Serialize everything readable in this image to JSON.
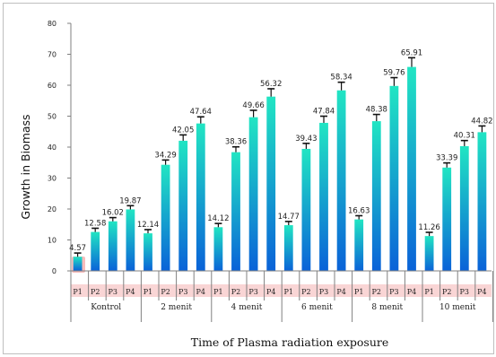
{
  "chart_data": {
    "type": "bar",
    "title": "",
    "xlabel": "Time of Plasma radiation exposure",
    "ylabel": "Growth in Biomass",
    "ylim": [
      0,
      80
    ],
    "yticks": [
      "0",
      "10",
      "20",
      "30",
      "40",
      "50",
      "60",
      "70",
      "80"
    ],
    "grid": false,
    "legend": "none",
    "groups": [
      {
        "name": "Kontrol",
        "categories": [
          "P1",
          "P2",
          "P3",
          "P4"
        ],
        "values": [
          4.57,
          12.58,
          16.02,
          19.87
        ],
        "labels": [
          "4.57",
          "12.58",
          "16.02",
          "19.87"
        ]
      },
      {
        "name": "2 menit",
        "categories": [
          "P1",
          "P2",
          "P3",
          "P4"
        ],
        "values": [
          12.14,
          34.29,
          42.05,
          47.64
        ],
        "labels": [
          "12.14",
          "34.29",
          "42.05",
          "47.64"
        ]
      },
      {
        "name": "4 menit",
        "categories": [
          "P1",
          "P2",
          "P3",
          "P4"
        ],
        "values": [
          14.12,
          38.36,
          49.66,
          56.32
        ],
        "labels": [
          "14.12",
          "38.36",
          "49.66",
          "56.32"
        ]
      },
      {
        "name": "6 menit",
        "categories": [
          "P1",
          "P2",
          "P3",
          "P4"
        ],
        "values": [
          14.77,
          39.43,
          47.84,
          58.34
        ],
        "labels": [
          "14.77",
          "39.43",
          "47.84",
          "58.34"
        ]
      },
      {
        "name": "8 menit",
        "categories": [
          "P1",
          "P2",
          "P3",
          "P4"
        ],
        "values": [
          16.63,
          48.38,
          59.76,
          65.91
        ],
        "labels": [
          "16.63",
          "48.38",
          "59.76",
          "65.91"
        ]
      },
      {
        "name": "10 menit",
        "categories": [
          "P1",
          "P2",
          "P3",
          "P4"
        ],
        "values": [
          11.26,
          33.39,
          40.31,
          44.82
        ],
        "labels": [
          "11.26",
          "33.39",
          "40.31",
          "44.82"
        ]
      }
    ],
    "error_bars": true,
    "colors": {
      "bar_top": "#21e5c3",
      "bar_bottom": "#0a62d8",
      "category_band": "#f9d5d5",
      "axis": "#808080",
      "error": "#111111",
      "highlight": "#f4a6a6"
    }
  }
}
